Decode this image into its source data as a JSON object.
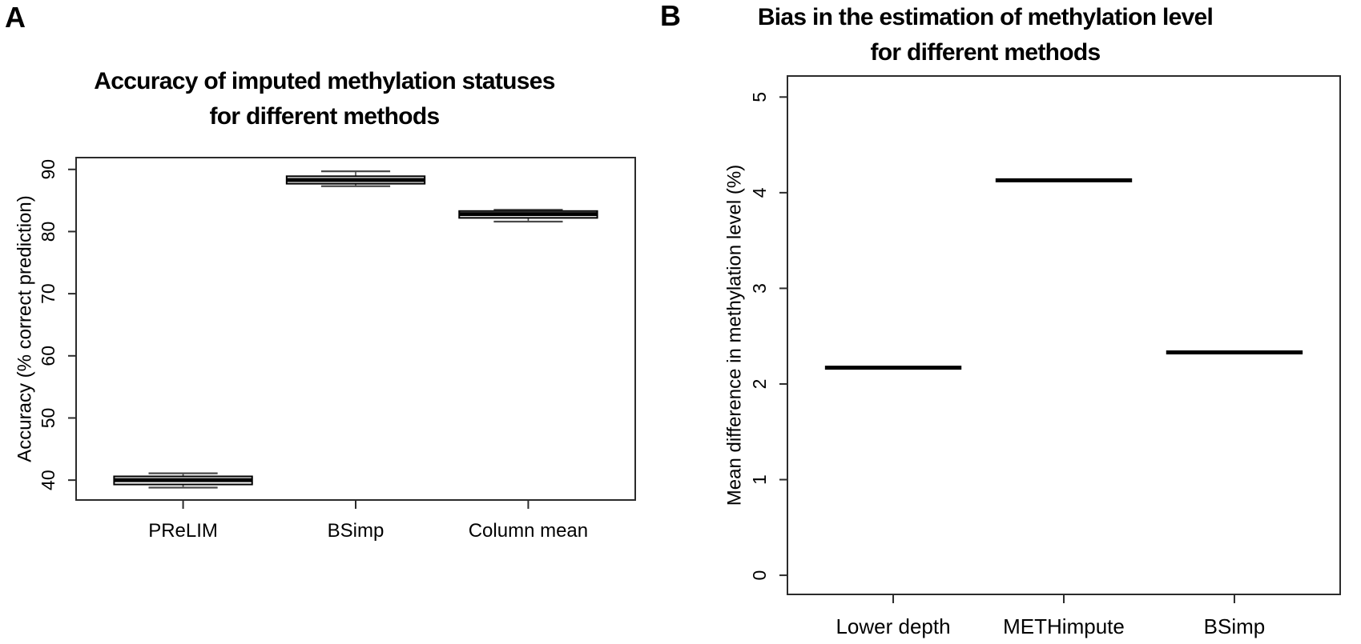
{
  "figure": {
    "background": "#ffffff",
    "ink_color": "#000000",
    "axis_color": "#2b2b2b",
    "whisker_color": "#4a4a4a"
  },
  "chart_data": [
    {
      "panel_label": "A",
      "type": "boxplot",
      "title_line1": "Accuracy of imputed methylation statuses",
      "title_line2": "for different methods",
      "ylabel": "Accuracy (% correct prediction)",
      "xlabel": "",
      "categories": [
        "PReLIM",
        "BSimp",
        "Column mean"
      ],
      "yticks": [
        40,
        50,
        60,
        70,
        80,
        90
      ],
      "ylim": [
        36.8,
        91.9
      ],
      "grid": false,
      "legend": null,
      "boxes": [
        {
          "category": "PReLIM",
          "whisker_low": 38.8,
          "q1": 39.3,
          "median": 40.0,
          "q3": 40.6,
          "whisker_high": 41.1
        },
        {
          "category": "BSimp",
          "whisker_low": 87.3,
          "q1": 87.7,
          "median": 88.3,
          "q3": 88.9,
          "whisker_high": 89.7
        },
        {
          "category": "Column mean",
          "whisker_low": 81.6,
          "q1": 82.2,
          "median": 82.8,
          "q3": 83.3,
          "whisker_high": 83.5
        }
      ]
    },
    {
      "panel_label": "B",
      "type": "boxplot",
      "title_line1": "Bias in the estimation of methylation level",
      "title_line2": "for different methods",
      "ylabel": "Mean difference in methylation level (%)",
      "xlabel": "",
      "categories": [
        "Lower depth",
        "METHimpute",
        "BSimp"
      ],
      "yticks": [
        0,
        1,
        2,
        3,
        4,
        5
      ],
      "ylim": [
        -0.2,
        5.22
      ],
      "grid": false,
      "legend": null,
      "boxes": [
        {
          "category": "Lower depth",
          "median": 2.17
        },
        {
          "category": "METHimpute",
          "median": 4.13
        },
        {
          "category": "BSimp",
          "median": 2.33
        }
      ]
    }
  ]
}
